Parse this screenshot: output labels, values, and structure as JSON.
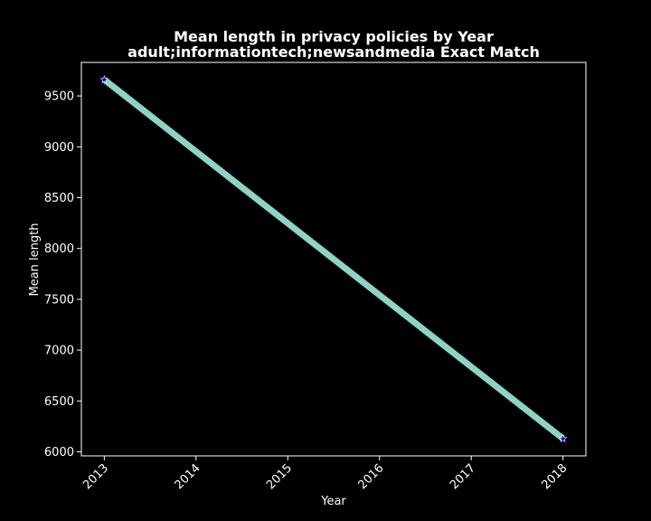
{
  "chart_data": {
    "type": "line",
    "title": "Mean length in privacy policies by Year",
    "subtitle": "adult;informationtech;newsandmedia Exact Match",
    "xlabel": "Year",
    "ylabel": "Mean length",
    "xticks": [
      "2013",
      "2014",
      "2015",
      "2016",
      "2017",
      "2018"
    ],
    "yticks": [
      "6000",
      "6500",
      "7000",
      "7500",
      "8000",
      "8500",
      "9000",
      "9500"
    ],
    "xlim": [
      2012.75,
      2018.25
    ],
    "ylim": [
      5960,
      9830
    ],
    "grid": false,
    "series": [
      {
        "x": [
          2013,
          2018
        ],
        "y": [
          9660,
          6130
        ],
        "line_color": "#8dd3c7",
        "marker_color": "#0000ff",
        "marker": "star"
      }
    ]
  },
  "colors": {
    "background": "#000000",
    "axes_background": "#000000",
    "axis": "#ffffff",
    "text": "#ffffff"
  }
}
